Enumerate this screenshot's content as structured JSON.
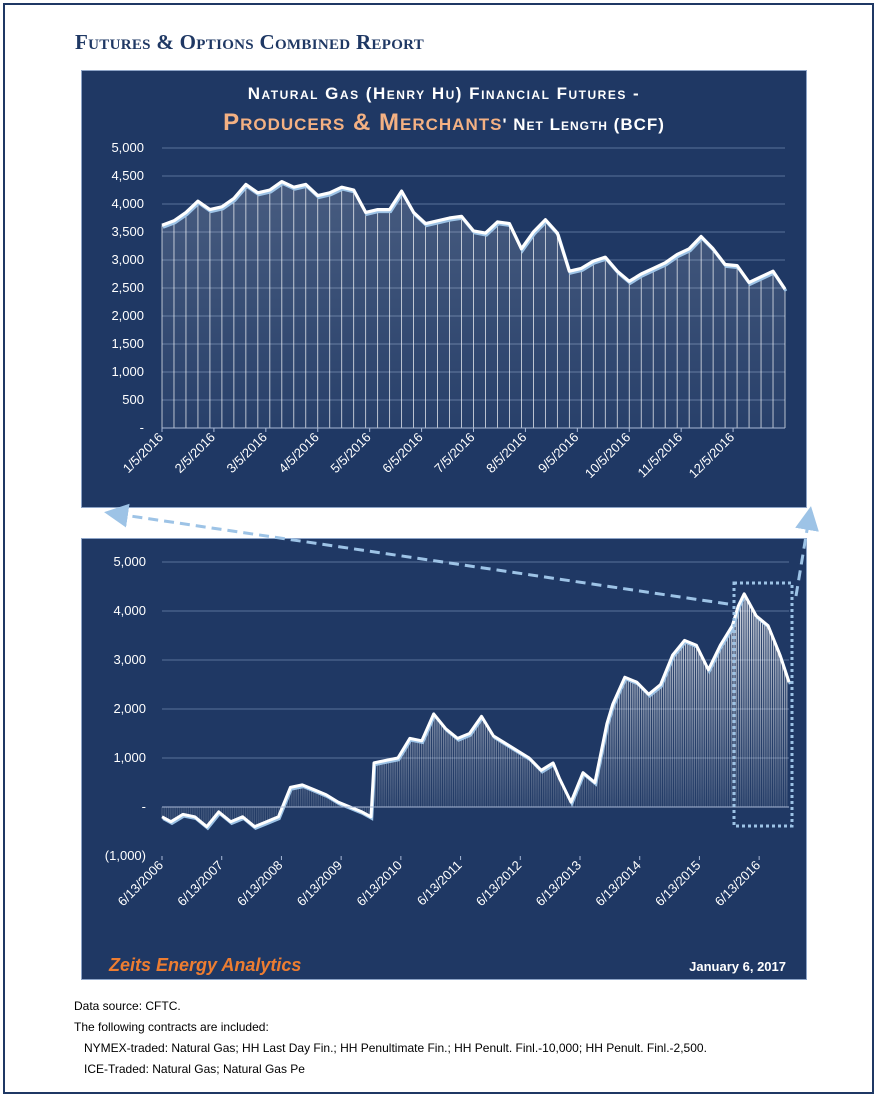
{
  "report": {
    "title": "Futures & Options Combined Report"
  },
  "top_chart": {
    "title_line1": "Natural Gas (Henry Hu) Financial Futures -",
    "title_highlight": "Producers & Merchants",
    "title_rest": "' Net Length (BCF)"
  },
  "footer": {
    "brand": "Zeits Energy Analytics",
    "date": "January 6, 2017"
  },
  "notes": {
    "line1": "Data source: CFTC.",
    "line2": "The following contracts are included:",
    "line3": "NYMEX-traded: Natural Gas; HH Last Day Fin.; HH Penultimate Fin.; HH Penult. Finl.-10,000; HH Penult. Finl.-2,500.",
    "line4": "ICE-Traded: Natural Gas; Natural Gas Pe"
  },
  "colors": {
    "panel": "#1f3864",
    "line": "#ffffff",
    "line_shadow": "#9dc3e6",
    "accent": "#f4b183",
    "brand": "#ed7d31",
    "callout": "#9dc3e6"
  },
  "chart_data": [
    {
      "type": "area",
      "title": "Natural Gas (Henry Hu) Financial Futures - Producers & Merchants' Net Length (BCF)",
      "x_range": [
        "1/5/2016",
        "1/3/2017"
      ],
      "ylim": [
        0,
        5000
      ],
      "y_ticks": [
        "-",
        "500",
        "1,000",
        "1,500",
        "2,000",
        "2,500",
        "3,000",
        "3,500",
        "4,000",
        "4,500",
        "5,000"
      ],
      "x_ticks": [
        "1/5/2016",
        "2/5/2016",
        "3/5/2016",
        "4/5/2016",
        "5/5/2016",
        "6/5/2016",
        "7/5/2016",
        "8/5/2016",
        "9/5/2016",
        "10/5/2016",
        "11/5/2016",
        "12/5/2016"
      ],
      "grid": true,
      "values": [
        3620,
        3700,
        3850,
        4050,
        3900,
        3950,
        4100,
        4350,
        4200,
        4250,
        4400,
        4300,
        4350,
        4150,
        4200,
        4300,
        4250,
        3850,
        3900,
        3900,
        4230,
        3850,
        3650,
        3700,
        3750,
        3780,
        3520,
        3480,
        3680,
        3650,
        3200,
        3500,
        3720,
        3480,
        2800,
        2850,
        2980,
        3050,
        2800,
        2620,
        2750,
        2850,
        2950,
        3100,
        3200,
        3420,
        3200,
        2920,
        2900,
        2600,
        2700,
        2800,
        2480
      ]
    },
    {
      "type": "area",
      "x_range": [
        "6/13/2006",
        "1/3/2017"
      ],
      "ylim": [
        -1000,
        5000
      ],
      "y_ticks": [
        "(1,000)",
        "-",
        "1,000",
        "2,000",
        "3,000",
        "4,000",
        "5,000"
      ],
      "x_ticks": [
        "6/13/2006",
        "6/13/2007",
        "6/13/2008",
        "6/13/2009",
        "6/13/2010",
        "6/13/2011",
        "6/13/2012",
        "6/13/2013",
        "6/13/2014",
        "6/13/2015",
        "6/13/2016"
      ],
      "grid": true,
      "series": [
        {
          "x": [
            2006.45,
            2006.6,
            2006.8,
            2007.0,
            2007.2,
            2007.4,
            2007.6,
            2007.8,
            2008.0,
            2008.2,
            2008.4,
            2008.6,
            2008.8,
            2009.0,
            2009.2,
            2009.4,
            2009.6,
            2009.8,
            2009.95,
            2010.0,
            2010.2,
            2010.4,
            2010.6,
            2010.8,
            2011.0,
            2011.2,
            2011.4,
            2011.6,
            2011.8,
            2012.0,
            2012.2,
            2012.4,
            2012.6,
            2012.8,
            2013.0,
            2013.1,
            2013.3,
            2013.5,
            2013.7,
            2013.9,
            2014.0,
            2014.2,
            2014.4,
            2014.6,
            2014.8,
            2015.0,
            2015.2,
            2015.4,
            2015.6,
            2015.8,
            2016.0,
            2016.1,
            2016.2,
            2016.4,
            2016.6,
            2016.8,
            2016.95
          ],
          "values": [
            -200,
            -300,
            -150,
            -200,
            -400,
            -100,
            -300,
            -200,
            -400,
            -300,
            -200,
            400,
            450,
            350,
            250,
            100,
            0,
            -100,
            -200,
            900,
            950,
            1000,
            1400,
            1350,
            1900,
            1600,
            1400,
            1500,
            1850,
            1450,
            1300,
            1150,
            1000,
            750,
            900,
            600,
            100,
            700,
            500,
            1700,
            2100,
            2650,
            2550,
            2300,
            2500,
            3100,
            3400,
            3300,
            2800,
            3300,
            3700,
            4100,
            4350,
            3900,
            3700,
            3100,
            2550
          ]
        }
      ]
    }
  ]
}
